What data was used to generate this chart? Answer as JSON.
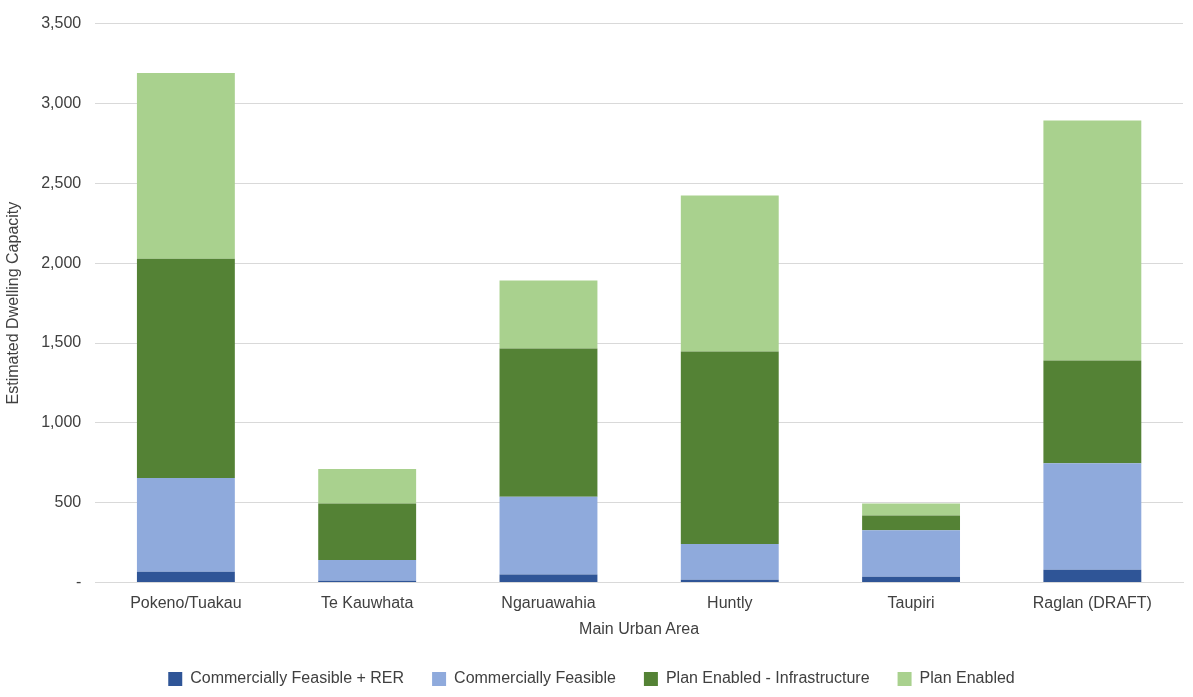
{
  "chart_data": {
    "type": "bar",
    "stacked": true,
    "xlabel": "Main Urban Area",
    "ylabel": "Estimated Dwelling Capacity",
    "categories": [
      "Pokeno/Tuakau",
      "Te Kauwhata",
      "Ngaruawahia",
      "Huntly",
      "Taupiri",
      "Raglan (DRAFT)"
    ],
    "series": [
      {
        "name": "Commercially Feasible + RER",
        "color": "#2f5597",
        "values": [
          68,
          12,
          50,
          18,
          37,
          80
        ]
      },
      {
        "name": "Commercially Feasible",
        "color": "#8faadc",
        "values": [
          587,
          130,
          488,
          223,
          291,
          668
        ]
      },
      {
        "name": "Plan Enabled - Infrastructure",
        "color": "#548235",
        "values": [
          1373,
          353,
          928,
          1206,
          92,
          643
        ]
      },
      {
        "name": "Plan Enabled",
        "color": "#a9d18e",
        "values": [
          1162,
          216,
          426,
          977,
          75,
          1503
        ]
      }
    ],
    "ylim": [
      0,
      3500
    ],
    "yticks": [
      {
        "value": 0,
        "label": "-"
      },
      500,
      {
        "value": 1000,
        "label": "1,000"
      },
      {
        "value": 1500,
        "label": "1,500"
      },
      {
        "value": 2000,
        "label": "2,000"
      },
      {
        "value": 2500,
        "label": "2,500"
      },
      {
        "value": 3000,
        "label": "3,000"
      },
      {
        "value": 3500,
        "label": "3,500"
      }
    ],
    "grid": "y",
    "legend": "bottom"
  }
}
